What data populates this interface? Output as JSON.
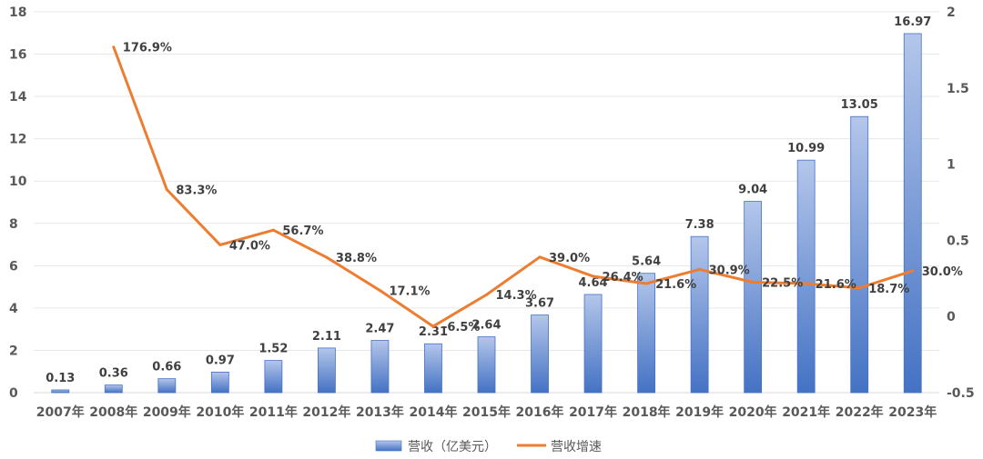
{
  "chart_data": {
    "type": "bar+line",
    "title": "",
    "categories": [
      "2007年",
      "2008年",
      "2009年",
      "2010年",
      "2011年",
      "2012年",
      "2013年",
      "2014年",
      "2015年",
      "2016年",
      "2017年",
      "2018年",
      "2019年",
      "2020年",
      "2021年",
      "2022年",
      "2023年"
    ],
    "series": [
      {
        "name": "营收（亿美元）",
        "type": "bar",
        "axis": "left",
        "color": "#4472C4",
        "values": [
          0.13,
          0.36,
          0.66,
          0.97,
          1.52,
          2.11,
          2.47,
          2.31,
          2.64,
          3.67,
          4.64,
          5.64,
          7.38,
          9.04,
          10.99,
          13.05,
          16.97
        ],
        "labels": [
          "0.13",
          "0.36",
          "0.66",
          "0.97",
          "1.52",
          "2.11",
          "2.47",
          "2.31",
          "2.64",
          "3.67",
          "4.64",
          "5.64",
          "7.38",
          "9.04",
          "10.99",
          "13.05",
          "16.97"
        ]
      },
      {
        "name": "营收增速",
        "type": "line",
        "axis": "right",
        "color": "#ED7D31",
        "values": [
          null,
          1.769,
          0.833,
          0.47,
          0.567,
          0.388,
          0.171,
          -0.065,
          0.143,
          0.39,
          0.264,
          0.216,
          0.309,
          0.225,
          0.216,
          0.187,
          0.3
        ],
        "labels": [
          null,
          "176.9%",
          "83.3%",
          "47.0%",
          "56.7%",
          "38.8%",
          "17.1%",
          "-6.5%",
          "14.3%",
          "39.0%",
          "26.4%",
          "21.6%",
          "30.9%",
          "22.5%",
          "21.6%",
          "18.7%",
          "30.0%"
        ]
      }
    ],
    "left_axis": {
      "ylim": [
        0,
        18
      ],
      "ticks": [
        "0",
        "2",
        "4",
        "6",
        "8",
        "10",
        "12",
        "14",
        "16",
        "18"
      ]
    },
    "right_axis": {
      "ylim": [
        -0.5,
        2
      ],
      "ticks": [
        "-0.5",
        "0",
        "0.5",
        "1",
        "1.5",
        "2"
      ]
    },
    "grid": true,
    "legend": {
      "position": "bottom",
      "entries": [
        "营收（亿美元）",
        "营收增速"
      ]
    }
  }
}
